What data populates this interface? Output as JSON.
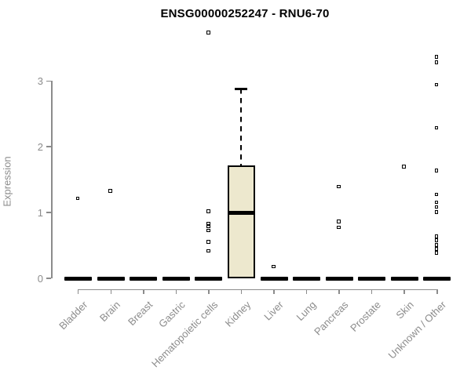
{
  "title": "ENSG00000252247 - RNU6-70",
  "chart_data": {
    "type": "boxplot",
    "title": "ENSG00000252247 - RNU6-70",
    "ylabel": "Expression",
    "xlabel": "",
    "yticks": [
      0,
      1,
      2,
      3
    ],
    "ylim": [
      0,
      3.85
    ],
    "grid": "off",
    "categories": [
      "Bladder",
      "Brain",
      "Breast",
      "Gastric",
      "Hematopoietic cells",
      "Kidney",
      "Liver",
      "Lung",
      "Pancreas",
      "Prostate",
      "Skin",
      "Unknown / Other"
    ],
    "boxes": [
      {
        "category": "Bladder",
        "q1": 0,
        "median": 0,
        "q3": 0,
        "whisker_low": 0,
        "whisker_high": 0,
        "outliers": [
          1.21
        ]
      },
      {
        "category": "Brain",
        "q1": 0,
        "median": 0,
        "q3": 0,
        "whisker_low": 0,
        "whisker_high": 0,
        "outliers": [
          1.32
        ]
      },
      {
        "category": "Breast",
        "q1": 0,
        "median": 0,
        "q3": 0,
        "whisker_low": 0,
        "whisker_high": 0,
        "outliers": []
      },
      {
        "category": "Gastric",
        "q1": 0,
        "median": 0,
        "q3": 0,
        "whisker_low": 0,
        "whisker_high": 0,
        "outliers": []
      },
      {
        "category": "Hematopoietic cells",
        "q1": 0,
        "median": 0,
        "q3": 0,
        "whisker_low": 0,
        "whisker_high": 0,
        "outliers": [
          3.73,
          1.01,
          0.83,
          0.78,
          0.72,
          0.55,
          0.41
        ]
      },
      {
        "category": "Kidney",
        "q1": 0,
        "median": 1.0,
        "q3": 1.72,
        "whisker_low": 0,
        "whisker_high": 2.88,
        "outliers": []
      },
      {
        "category": "Liver",
        "q1": 0,
        "median": 0,
        "q3": 0,
        "whisker_low": 0,
        "whisker_high": 0,
        "outliers": [
          0.17
        ]
      },
      {
        "category": "Lung",
        "q1": 0,
        "median": 0,
        "q3": 0,
        "whisker_low": 0,
        "whisker_high": 0,
        "outliers": []
      },
      {
        "category": "Pancreas",
        "q1": 0,
        "median": 0,
        "q3": 0,
        "whisker_low": 0,
        "whisker_high": 0,
        "outliers": [
          1.39,
          0.86,
          0.77
        ]
      },
      {
        "category": "Prostate",
        "q1": 0,
        "median": 0,
        "q3": 0,
        "whisker_low": 0,
        "whisker_high": 0,
        "outliers": []
      },
      {
        "category": "Skin",
        "q1": 0,
        "median": 0,
        "q3": 0,
        "whisker_low": 0,
        "whisker_high": 0,
        "outliers": [
          1.69
        ]
      },
      {
        "category": "Unknown / Other",
        "q1": 0,
        "median": 0,
        "q3": 0,
        "whisker_low": 0,
        "whisker_high": 0,
        "outliers": [
          3.36,
          3.28,
          2.94,
          2.28,
          1.63,
          1.27,
          1.15,
          1.08,
          1.0,
          0.63,
          0.57,
          0.5,
          0.44,
          0.38
        ]
      }
    ],
    "style": {
      "box_fill": "#EDE8CE",
      "box_border": "#000000",
      "median_color": "#000000",
      "axis_color": "#8C8C8C",
      "label_color": "#8C8C8C",
      "title_color": "#000000",
      "background": "#FFFFFF"
    }
  }
}
